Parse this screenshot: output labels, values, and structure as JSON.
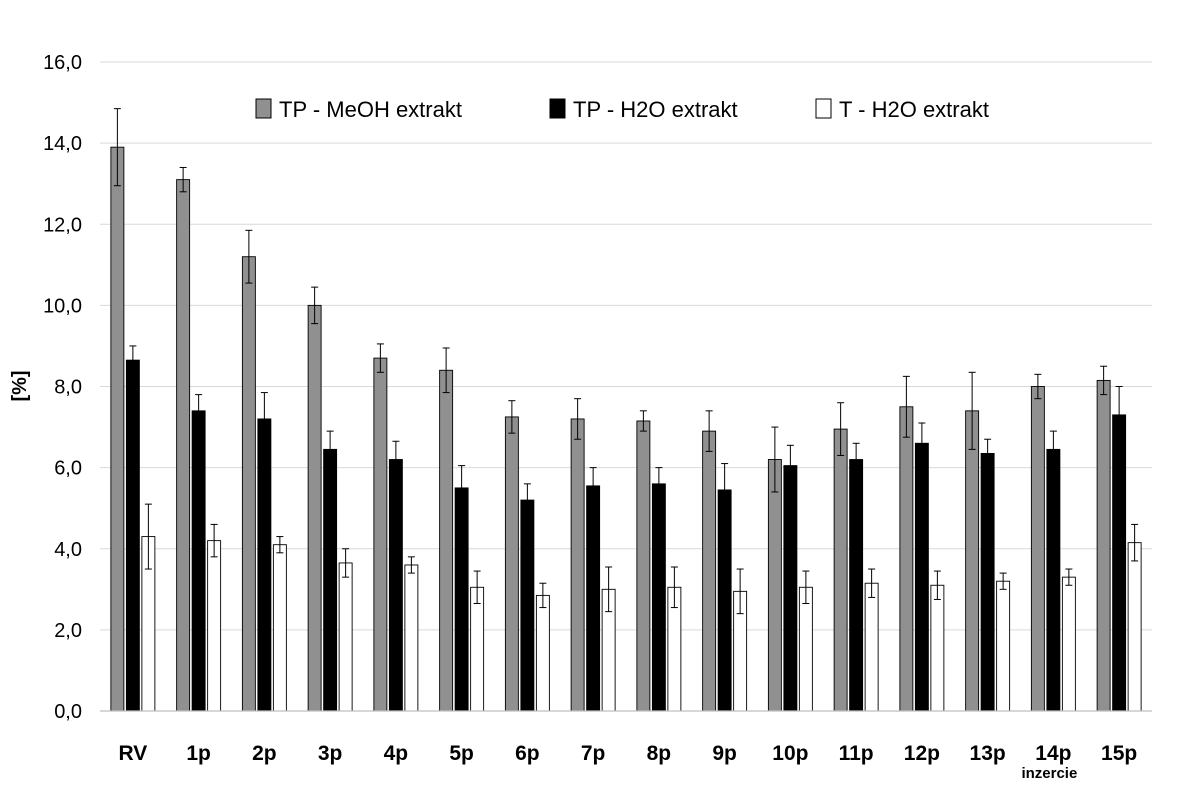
{
  "chart_data": {
    "type": "bar",
    "title": "",
    "xlabel": "",
    "ylabel": "[%]",
    "ylim": [
      0,
      16
    ],
    "yticks": [
      "0,0",
      "2,0",
      "4,0",
      "6,0",
      "8,0",
      "10,0",
      "12,0",
      "14,0",
      "16,0"
    ],
    "grid": true,
    "legend_position": "top",
    "categories": [
      "RV",
      "1p",
      "2p",
      "3p",
      "4p",
      "5p",
      "6p",
      "7p",
      "8p",
      "9p",
      "10p",
      "11p",
      "12p",
      "13p",
      "14p",
      "15p"
    ],
    "annotations": [
      {
        "category": "14p",
        "text": "inzercie"
      }
    ],
    "series": [
      {
        "name": "TP - MeOH extrakt",
        "color": "#909090",
        "values": [
          13.9,
          13.1,
          11.2,
          10.0,
          8.7,
          8.4,
          7.25,
          7.2,
          7.15,
          6.9,
          6.2,
          6.95,
          7.5,
          7.4,
          8.0,
          8.15
        ],
        "errors": [
          0.95,
          0.3,
          0.65,
          0.45,
          0.35,
          0.55,
          0.4,
          0.5,
          0.25,
          0.5,
          0.8,
          0.65,
          0.75,
          0.95,
          0.3,
          0.35
        ]
      },
      {
        "name": "TP - H2O extrakt",
        "color": "#000000",
        "values": [
          8.65,
          7.4,
          7.2,
          6.45,
          6.2,
          5.5,
          5.2,
          5.55,
          5.6,
          5.45,
          6.05,
          6.2,
          6.6,
          6.35,
          6.45,
          7.3
        ],
        "errors": [
          0.35,
          0.4,
          0.65,
          0.45,
          0.45,
          0.55,
          0.4,
          0.45,
          0.4,
          0.65,
          0.5,
          0.4,
          0.5,
          0.35,
          0.45,
          0.7
        ]
      },
      {
        "name": "T - H2O extrakt",
        "color": "#ffffff",
        "values": [
          4.3,
          4.2,
          4.1,
          3.65,
          3.6,
          3.05,
          2.85,
          3.0,
          3.05,
          2.95,
          3.05,
          3.15,
          3.1,
          3.2,
          3.3,
          4.15
        ],
        "errors": [
          0.8,
          0.4,
          0.2,
          0.35,
          0.2,
          0.4,
          0.3,
          0.55,
          0.5,
          0.55,
          0.4,
          0.35,
          0.35,
          0.2,
          0.2,
          0.45
        ]
      }
    ]
  }
}
